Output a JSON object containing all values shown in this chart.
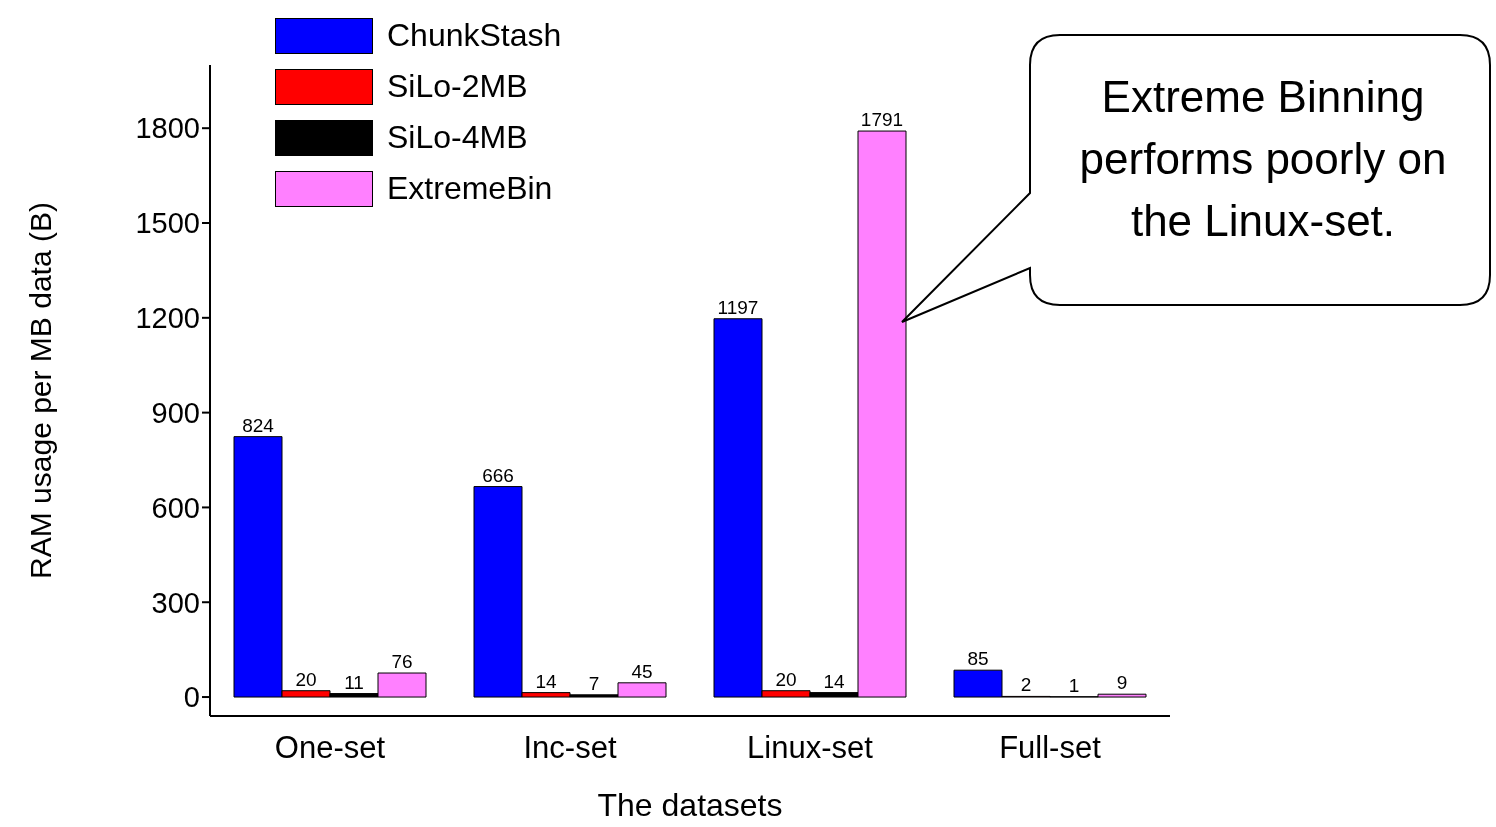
{
  "chart_data": {
    "type": "bar",
    "xlabel": "The datasets",
    "ylabel": "RAM usage per MB data (B)",
    "categories": [
      "One-set",
      "Inc-set",
      "Linux-set",
      "Full-set"
    ],
    "series": [
      {
        "name": "ChunkStash",
        "color": "#0000ff",
        "values": [
          824,
          666,
          1197,
          85
        ]
      },
      {
        "name": "SiLo-2MB",
        "color": "#ff0000",
        "values": [
          20,
          14,
          20,
          2
        ]
      },
      {
        "name": "SiLo-4MB",
        "color": "#000000",
        "values": [
          11,
          7,
          14,
          1
        ]
      },
      {
        "name": "ExtremeBin",
        "color": "#ff80ff",
        "values": [
          76,
          45,
          1791,
          9
        ]
      }
    ],
    "ylim": [
      -60,
      2000
    ],
    "yticks": [
      0,
      300,
      600,
      900,
      1200,
      1500,
      1800
    ],
    "data_labels": true,
    "grid": false,
    "legend": "top left",
    "annotations": [
      "Extreme Binning performs poorly on the Linux-set."
    ]
  }
}
